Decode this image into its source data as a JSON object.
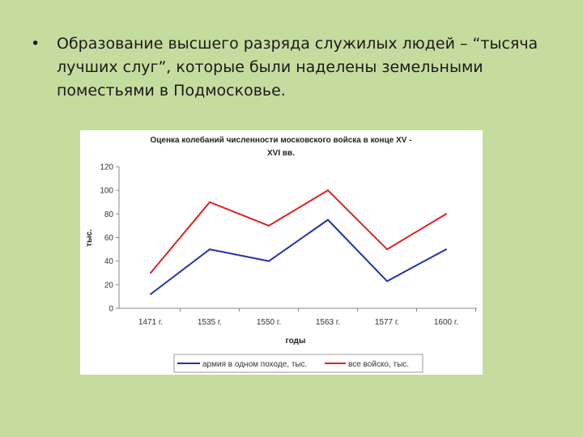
{
  "slide": {
    "bullet_symbol": "•",
    "bullet_text": "Образование высшего разряда служилых людей – “тысяча лучших слуг”, которые были наделены земельными поместьями в Подмосковье."
  },
  "colors": {
    "background": "#c5dc9f",
    "series_army": "#2233aa",
    "series_total": "#dd2222"
  },
  "chart_data": {
    "type": "line",
    "title_line1": "Оценка колебаний численности московского войска в конце XV -",
    "title_line2": "XVI вв.",
    "xlabel": "годы",
    "ylabel": "тыс.",
    "categories": [
      "1471 г.",
      "1535 г.",
      "1550 г.",
      "1563 г.",
      "1577 г.",
      "1600 г."
    ],
    "ylim": [
      0,
      120
    ],
    "yticks": [
      0,
      20,
      40,
      60,
      80,
      100,
      120
    ],
    "grid": false,
    "legend_position": "bottom",
    "series": [
      {
        "name": "армия в одном походе, тыс.",
        "color": "#2233aa",
        "values": [
          12,
          50,
          40,
          75,
          23,
          50
        ]
      },
      {
        "name": "все войско, тыс.",
        "color": "#dd2222",
        "values": [
          30,
          90,
          70,
          100,
          50,
          80
        ]
      }
    ]
  }
}
